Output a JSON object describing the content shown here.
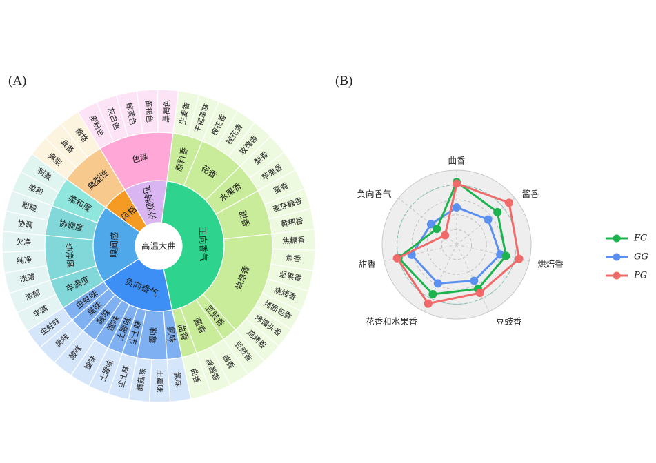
{
  "panels": {
    "a": "(A)",
    "b": "(B)"
  },
  "chart_data": [
    {
      "type": "sunburst",
      "center_label": "高温大曲",
      "colors": {
        "style": "#f59a23",
        "appearance": "#d9b5f2",
        "positive": "#2ed48e",
        "negative": "#3d8ff5",
        "nose": "#4fa8ea",
        "mouth": "#5fd9d4",
        "typicality": "#f8c98d",
        "color": "#ffa8d8",
        "positive_mid": "#c8ec9a",
        "negative_mid": "#7fb1f2",
        "nose_mid": "#82d8d8",
        "mouth_mid": "#8fe6dc",
        "typ_outer": "#fdf4e0",
        "color_outer": "#fce4f6",
        "positive_outer": "#eefae0",
        "negative_outer": "#d5e6fb",
        "nose_outer": "#e4f4f2",
        "mouth_outer": "#e0f4f0"
      },
      "hierarchy": [
        {
          "name": "风格",
          "color": "style",
          "children": [
            {
              "name": "典型性",
              "color": "typicality",
              "children": [
                {
                  "name": "典型",
                  "color": "typ_outer"
                },
                {
                  "name": "具备",
                  "color": "typ_outer"
                },
                {
                  "name": "偏格",
                  "color": "typ_outer"
                }
              ]
            }
          ]
        },
        {
          "name": "外观特征",
          "color": "appearance",
          "children": [
            {
              "name": "色泽",
              "color": "color",
              "children": [
                {
                  "name": "麦粉色",
                  "color": "color_outer"
                },
                {
                  "name": "灰白色",
                  "color": "color_outer"
                },
                {
                  "name": "棕黄色",
                  "color": "color_outer"
                },
                {
                  "name": "黄褐色",
                  "color": "color_outer"
                },
                {
                  "name": "黑褐色",
                  "color": "color_outer"
                }
              ]
            }
          ]
        },
        {
          "name": "正向香气",
          "color": "positive",
          "children": [
            {
              "name": "原料香",
              "color": "positive_mid",
              "children": [
                {
                  "name": "生麦香",
                  "color": "positive_outer"
                },
                {
                  "name": "干稻草味",
                  "color": "positive_outer"
                }
              ]
            },
            {
              "name": "花香",
              "color": "positive_mid",
              "children": [
                {
                  "name": "槐花香",
                  "color": "positive_outer"
                },
                {
                  "name": "桂花香",
                  "color": "positive_outer"
                },
                {
                  "name": "玫瑰香",
                  "color": "positive_outer"
                }
              ]
            },
            {
              "name": "水果香",
              "color": "positive_mid",
              "children": [
                {
                  "name": "梨香",
                  "color": "positive_outer"
                },
                {
                  "name": "苹果香",
                  "color": "positive_outer"
                }
              ]
            },
            {
              "name": "甜香",
              "color": "positive_mid",
              "children": [
                {
                  "name": "蜜香",
                  "color": "positive_outer"
                },
                {
                  "name": "麦芽糖香",
                  "color": "positive_outer"
                },
                {
                  "name": "黄粑香",
                  "color": "positive_outer"
                }
              ]
            },
            {
              "name": "烘焙香",
              "color": "positive_mid",
              "children": [
                {
                  "name": "焦糖香",
                  "color": "positive_outer"
                },
                {
                  "name": "焦香",
                  "color": "positive_outer"
                },
                {
                  "name": "坚果香",
                  "color": "positive_outer"
                },
                {
                  "name": "烧烤香",
                  "color": "positive_outer"
                },
                {
                  "name": "烤面包香",
                  "color": "positive_outer"
                },
                {
                  "name": "烤馒头香",
                  "color": "positive_outer"
                },
                {
                  "name": "焙烤香",
                  "color": "positive_outer"
                }
              ]
            },
            {
              "name": "豆豉香",
              "color": "positive_mid",
              "children": [
                {
                  "name": "豆豉香",
                  "color": "positive_outer"
                }
              ]
            },
            {
              "name": "酱香",
              "color": "positive_mid",
              "children": [
                {
                  "name": "酱香",
                  "color": "positive_outer"
                },
                {
                  "name": "咸酱香",
                  "color": "positive_outer"
                }
              ]
            },
            {
              "name": "曲香",
              "color": "positive_mid",
              "children": [
                {
                  "name": "曲香",
                  "color": "positive_outer"
                }
              ]
            }
          ]
        },
        {
          "name": "负向香气",
          "color": "negative",
          "children": [
            {
              "name": "氨味",
              "color": "negative_mid",
              "children": [
                {
                  "name": "氨味",
                  "color": "negative_outer"
                }
              ]
            },
            {
              "name": "霉味",
              "color": "negative_mid",
              "children": [
                {
                  "name": "土霉味",
                  "color": "negative_outer"
                },
                {
                  "name": "蘑菇味",
                  "color": "negative_outer"
                }
              ]
            },
            {
              "name": "尘土味",
              "color": "negative_mid",
              "children": [
                {
                  "name": "尘土味",
                  "color": "negative_outer"
                }
              ]
            },
            {
              "name": "土腥味",
              "color": "negative_mid",
              "children": [
                {
                  "name": "土腥味",
                  "color": "negative_outer"
                }
              ]
            },
            {
              "name": "馊味",
              "color": "negative_mid",
              "children": [
                {
                  "name": "馊味",
                  "color": "negative_outer"
                }
              ]
            },
            {
              "name": "酸味",
              "color": "negative_mid",
              "children": [
                {
                  "name": "酸味",
                  "color": "negative_outer"
                }
              ]
            },
            {
              "name": "臭味",
              "color": "negative_mid",
              "children": [
                {
                  "name": "臭味",
                  "color": "negative_outer"
                }
              ]
            },
            {
              "name": "虫蛀味",
              "color": "negative_mid",
              "children": [
                {
                  "name": "虫蛀味",
                  "color": "negative_outer"
                }
              ]
            }
          ]
        },
        {
          "name": "嗅闻感",
          "color": "nose",
          "children": [
            {
              "name": "丰满度",
              "color": "nose_mid",
              "children": [
                {
                  "name": "丰满",
                  "color": "nose_outer"
                },
                {
                  "name": "浓郁",
                  "color": "nose_outer"
                }
              ]
            },
            {
              "name": "纯净度",
              "color": "nose_mid",
              "children": [
                {
                  "name": "淡薄",
                  "color": "nose_outer"
                },
                {
                  "name": "纯净",
                  "color": "nose_outer"
                },
                {
                  "name": "欠净",
                  "color": "nose_outer"
                }
              ]
            },
            {
              "name": "协调度",
              "color": "nose_mid",
              "children": [
                {
                  "name": "协调",
                  "color": "nose_outer"
                },
                {
                  "name": "粗糙",
                  "color": "nose_outer"
                }
              ]
            },
            {
              "name": "柔和度",
              "color": "mouth_mid",
              "children": [
                {
                  "name": "柔和",
                  "color": "mouth_outer"
                },
                {
                  "name": "刺激",
                  "color": "mouth_outer"
                }
              ]
            }
          ]
        }
      ]
    },
    {
      "type": "radar",
      "axes": [
        "曲香",
        "酱香",
        "烘焙香",
        "豆豉香",
        "花香和水果香",
        "甜香",
        "负向香气"
      ],
      "rmax": 5,
      "series": [
        {
          "name": "FG",
          "color": "#1db34e",
          "values": [
            4.2,
            3.5,
            3.4,
            3.3,
            3.7,
            4.0,
            1.7
          ]
        },
        {
          "name": "GG",
          "color": "#5b8ff0",
          "values": [
            2.5,
            2.7,
            3.0,
            2.7,
            2.9,
            3.1,
            2.2
          ]
        },
        {
          "name": "PG",
          "color": "#f06a6a",
          "values": [
            4.1,
            4.5,
            4.3,
            3.6,
            4.4,
            4.1,
            1.0
          ]
        }
      ],
      "legend_position": "right"
    }
  ]
}
